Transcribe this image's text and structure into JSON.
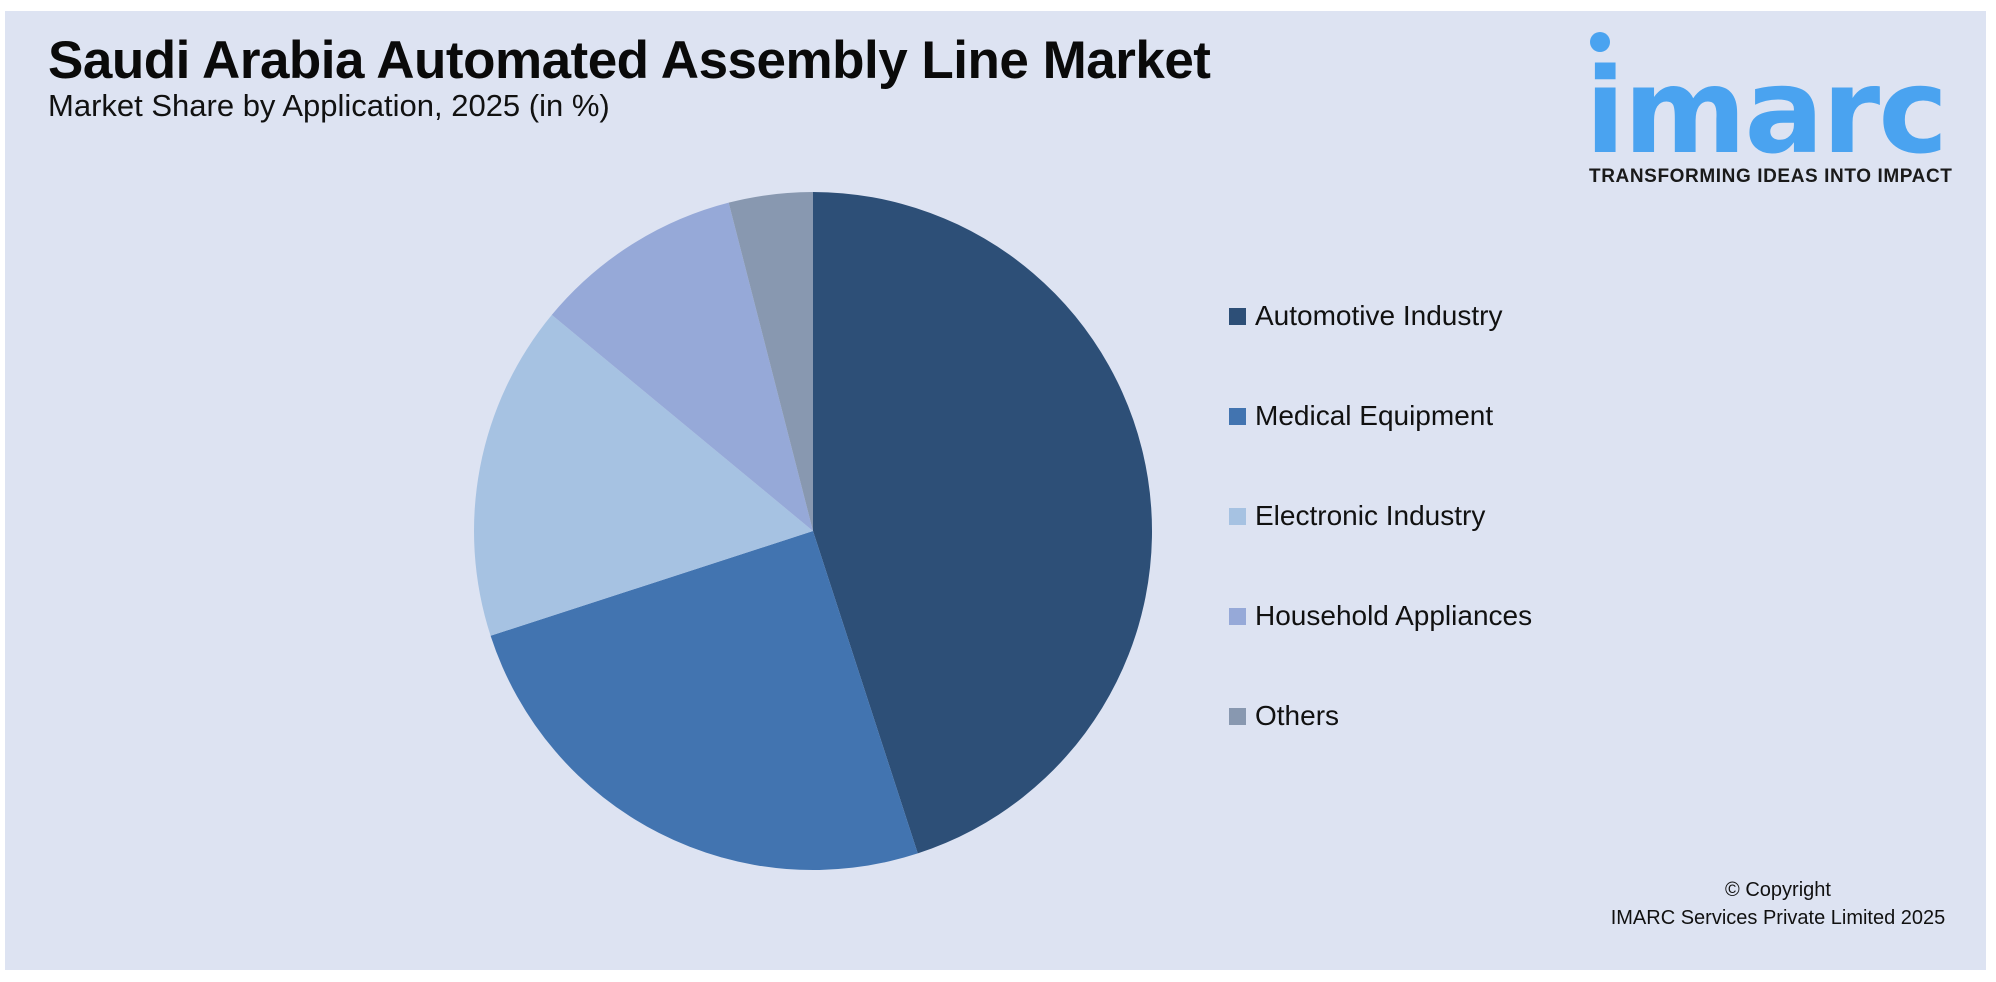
{
  "header": {
    "title": "Saudi Arabia Automated Assembly Line Market",
    "subtitle": "Market Share by Application, 2025 (in %)"
  },
  "logo": {
    "wordmark": "imarc",
    "tagline": "TRANSFORMING IDEAS INTO IMPACT",
    "color": "#4aa3f0"
  },
  "footer": {
    "copyright_line1": "© Copyright",
    "copyright_line2": "IMARC Services Private Limited 2025"
  },
  "chart_data": {
    "type": "pie",
    "title": "Saudi Arabia Automated Assembly Line Market",
    "subtitle": "Market Share by Application, 2025 (in %)",
    "start_angle_deg": 0,
    "direction": "clockwise",
    "legend_position": "right",
    "categories": [
      "Automotive Industry",
      "Medical Equipment",
      "Electronic Industry",
      "Household Appliances",
      "Others"
    ],
    "values": [
      45,
      25,
      16,
      10,
      4
    ],
    "colors": [
      "#2d4f77",
      "#4274b0",
      "#a6c2e2",
      "#96a9d8",
      "#8898b0"
    ],
    "unit": "%"
  }
}
